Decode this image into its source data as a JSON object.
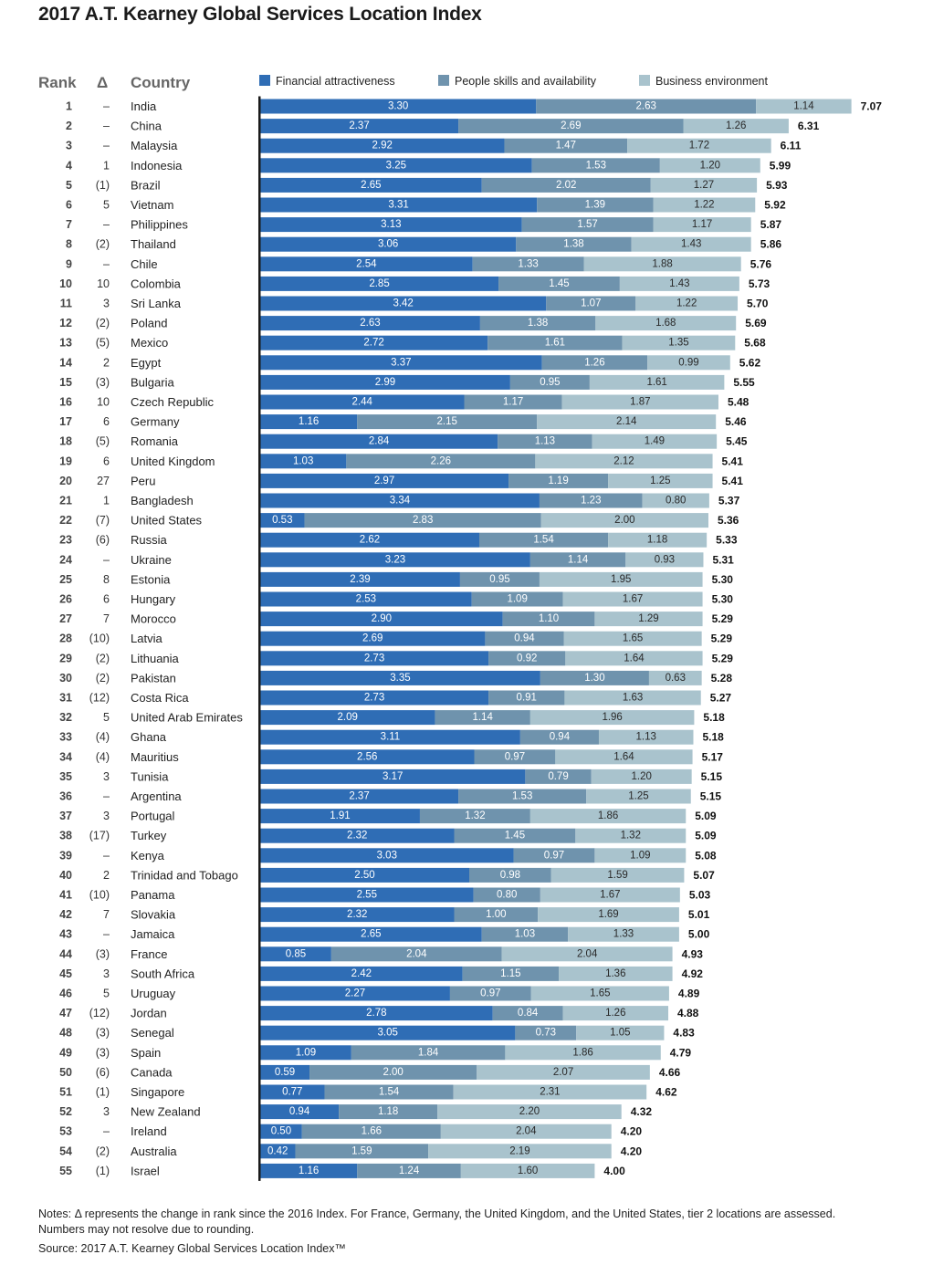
{
  "title": "2017 A.T. Kearney Global Services Location Index",
  "headers": {
    "rank": "Rank",
    "delta": "Δ",
    "country": "Country"
  },
  "colors": {
    "financial": "#2f6db5",
    "people": "#6f93ad",
    "business": "#a9c3cd",
    "axis": "#1a1a1a"
  },
  "chart_data": {
    "type": "bar",
    "orientation": "horizontal",
    "stacked": true,
    "title": "2017 A.T. Kearney Global Services Location Index",
    "legend": [
      "Financial attractiveness",
      "People skills and availability",
      "Business environment"
    ],
    "legend_position": "top",
    "rows": [
      {
        "rank": "1",
        "delta": "–",
        "country": "India",
        "fin": "3.30",
        "ppl": "2.63",
        "bus": "1.14",
        "total": "7.07"
      },
      {
        "rank": "2",
        "delta": "–",
        "country": "China",
        "fin": "2.37",
        "ppl": "2.69",
        "bus": "1.26",
        "total": "6.31"
      },
      {
        "rank": "3",
        "delta": "–",
        "country": "Malaysia",
        "fin": "2.92",
        "ppl": "1.47",
        "bus": "1.72",
        "total": "6.11"
      },
      {
        "rank": "4",
        "delta": "1",
        "country": "Indonesia",
        "fin": "3.25",
        "ppl": "1.53",
        "bus": "1.20",
        "total": "5.99"
      },
      {
        "rank": "5",
        "delta": "(1)",
        "country": "Brazil",
        "fin": "2.65",
        "ppl": "2.02",
        "bus": "1.27",
        "total": "5.93"
      },
      {
        "rank": "6",
        "delta": "5",
        "country": "Vietnam",
        "fin": "3.31",
        "ppl": "1.39",
        "bus": "1.22",
        "total": "5.92"
      },
      {
        "rank": "7",
        "delta": "–",
        "country": "Philippines",
        "fin": "3.13",
        "ppl": "1.57",
        "bus": "1.17",
        "total": "5.87"
      },
      {
        "rank": "8",
        "delta": "(2)",
        "country": "Thailand",
        "fin": "3.06",
        "ppl": "1.38",
        "bus": "1.43",
        "total": "5.86"
      },
      {
        "rank": "9",
        "delta": "–",
        "country": "Chile",
        "fin": "2.54",
        "ppl": "1.33",
        "bus": "1.88",
        "total": "5.76"
      },
      {
        "rank": "10",
        "delta": "10",
        "country": "Colombia",
        "fin": "2.85",
        "ppl": "1.45",
        "bus": "1.43",
        "total": "5.73"
      },
      {
        "rank": "11",
        "delta": "3",
        "country": "Sri Lanka",
        "fin": "3.42",
        "ppl": "1.07",
        "bus": "1.22",
        "total": "5.70"
      },
      {
        "rank": "12",
        "delta": "(2)",
        "country": "Poland",
        "fin": "2.63",
        "ppl": "1.38",
        "bus": "1.68",
        "total": "5.69"
      },
      {
        "rank": "13",
        "delta": "(5)",
        "country": "Mexico",
        "fin": "2.72",
        "ppl": "1.61",
        "bus": "1.35",
        "total": "5.68"
      },
      {
        "rank": "14",
        "delta": "2",
        "country": "Egypt",
        "fin": "3.37",
        "ppl": "1.26",
        "bus": "0.99",
        "total": "5.62"
      },
      {
        "rank": "15",
        "delta": "(3)",
        "country": "Bulgaria",
        "fin": "2.99",
        "ppl": "0.95",
        "bus": "1.61",
        "total": "5.55"
      },
      {
        "rank": "16",
        "delta": "10",
        "country": "Czech Republic",
        "fin": "2.44",
        "ppl": "1.17",
        "bus": "1.87",
        "total": "5.48"
      },
      {
        "rank": "17",
        "delta": "6",
        "country": "Germany",
        "fin": "1.16",
        "ppl": "2.15",
        "bus": "2.14",
        "total": "5.46"
      },
      {
        "rank": "18",
        "delta": "(5)",
        "country": "Romania",
        "fin": "2.84",
        "ppl": "1.13",
        "bus": "1.49",
        "total": "5.45"
      },
      {
        "rank": "19",
        "delta": "6",
        "country": "United Kingdom",
        "fin": "1.03",
        "ppl": "2.26",
        "bus": "2.12",
        "total": "5.41"
      },
      {
        "rank": "20",
        "delta": "27",
        "country": "Peru",
        "fin": "2.97",
        "ppl": "1.19",
        "bus": "1.25",
        "total": "5.41"
      },
      {
        "rank": "21",
        "delta": "1",
        "country": "Bangladesh",
        "fin": "3.34",
        "ppl": "1.23",
        "bus": "0.80",
        "total": "5.37"
      },
      {
        "rank": "22",
        "delta": "(7)",
        "country": "United States",
        "fin": "0.53",
        "ppl": "2.83",
        "bus": "2.00",
        "total": "5.36"
      },
      {
        "rank": "23",
        "delta": "(6)",
        "country": "Russia",
        "fin": "2.62",
        "ppl": "1.54",
        "bus": "1.18",
        "total": "5.33"
      },
      {
        "rank": "24",
        "delta": "–",
        "country": "Ukraine",
        "fin": "3.23",
        "ppl": "1.14",
        "bus": "0.93",
        "total": "5.31"
      },
      {
        "rank": "25",
        "delta": "8",
        "country": "Estonia",
        "fin": "2.39",
        "ppl": "0.95",
        "bus": "1.95",
        "total": "5.30"
      },
      {
        "rank": "26",
        "delta": "6",
        "country": "Hungary",
        "fin": "2.53",
        "ppl": "1.09",
        "bus": "1.67",
        "total": "5.30"
      },
      {
        "rank": "27",
        "delta": "7",
        "country": "Morocco",
        "fin": "2.90",
        "ppl": "1.10",
        "bus": "1.29",
        "total": "5.29"
      },
      {
        "rank": "28",
        "delta": "(10)",
        "country": "Latvia",
        "fin": "2.69",
        "ppl": "0.94",
        "bus": "1.65",
        "total": "5.29"
      },
      {
        "rank": "29",
        "delta": "(2)",
        "country": "Lithuania",
        "fin": "2.73",
        "ppl": "0.92",
        "bus": "1.64",
        "total": "5.29"
      },
      {
        "rank": "30",
        "delta": "(2)",
        "country": "Pakistan",
        "fin": "3.35",
        "ppl": "1.30",
        "bus": "0.63",
        "total": "5.28"
      },
      {
        "rank": "31",
        "delta": "(12)",
        "country": "Costa Rica",
        "fin": "2.73",
        "ppl": "0.91",
        "bus": "1.63",
        "total": "5.27"
      },
      {
        "rank": "32",
        "delta": "5",
        "country": "United Arab Emirates",
        "fin": "2.09",
        "ppl": "1.14",
        "bus": "1.96",
        "total": "5.18"
      },
      {
        "rank": "33",
        "delta": "(4)",
        "country": "Ghana",
        "fin": "3.11",
        "ppl": "0.94",
        "bus": "1.13",
        "total": "5.18"
      },
      {
        "rank": "34",
        "delta": "(4)",
        "country": "Mauritius",
        "fin": "2.56",
        "ppl": "0.97",
        "bus": "1.64",
        "total": "5.17"
      },
      {
        "rank": "35",
        "delta": "3",
        "country": "Tunisia",
        "fin": "3.17",
        "ppl": "0.79",
        "bus": "1.20",
        "total": "5.15"
      },
      {
        "rank": "36",
        "delta": "–",
        "country": "Argentina",
        "fin": "2.37",
        "ppl": "1.53",
        "bus": "1.25",
        "total": "5.15"
      },
      {
        "rank": "37",
        "delta": "3",
        "country": "Portugal",
        "fin": "1.91",
        "ppl": "1.32",
        "bus": "1.86",
        "total": "5.09"
      },
      {
        "rank": "38",
        "delta": "(17)",
        "country": "Turkey",
        "fin": "2.32",
        "ppl": "1.45",
        "bus": "1.32",
        "total": "5.09"
      },
      {
        "rank": "39",
        "delta": "–",
        "country": "Kenya",
        "fin": "3.03",
        "ppl": "0.97",
        "bus": "1.09",
        "total": "5.08"
      },
      {
        "rank": "40",
        "delta": "2",
        "country": "Trinidad and Tobago",
        "fin": "2.50",
        "ppl": "0.98",
        "bus": "1.59",
        "total": "5.07"
      },
      {
        "rank": "41",
        "delta": "(10)",
        "country": "Panama",
        "fin": "2.55",
        "ppl": "0.80",
        "bus": "1.67",
        "total": "5.03"
      },
      {
        "rank": "42",
        "delta": "7",
        "country": "Slovakia",
        "fin": "2.32",
        "ppl": "1.00",
        "bus": "1.69",
        "total": "5.01"
      },
      {
        "rank": "43",
        "delta": "–",
        "country": "Jamaica",
        "fin": "2.65",
        "ppl": "1.03",
        "bus": "1.33",
        "total": "5.00"
      },
      {
        "rank": "44",
        "delta": "(3)",
        "country": "France",
        "fin": "0.85",
        "ppl": "2.04",
        "bus": "2.04",
        "total": "4.93"
      },
      {
        "rank": "45",
        "delta": "3",
        "country": "South Africa",
        "fin": "2.42",
        "ppl": "1.15",
        "bus": "1.36",
        "total": "4.92"
      },
      {
        "rank": "46",
        "delta": "5",
        "country": "Uruguay",
        "fin": "2.27",
        "ppl": "0.97",
        "bus": "1.65",
        "total": "4.89"
      },
      {
        "rank": "47",
        "delta": "(12)",
        "country": "Jordan",
        "fin": "2.78",
        "ppl": "0.84",
        "bus": "1.26",
        "total": "4.88"
      },
      {
        "rank": "48",
        "delta": "(3)",
        "country": "Senegal",
        "fin": "3.05",
        "ppl": "0.73",
        "bus": "1.05",
        "total": "4.83"
      },
      {
        "rank": "49",
        "delta": "(3)",
        "country": "Spain",
        "fin": "1.09",
        "ppl": "1.84",
        "bus": "1.86",
        "total": "4.79"
      },
      {
        "rank": "50",
        "delta": "(6)",
        "country": "Canada",
        "fin": "0.59",
        "ppl": "2.00",
        "bus": "2.07",
        "total": "4.66"
      },
      {
        "rank": "51",
        "delta": "(1)",
        "country": "Singapore",
        "fin": "0.77",
        "ppl": "1.54",
        "bus": "2.31",
        "total": "4.62"
      },
      {
        "rank": "52",
        "delta": "3",
        "country": "New Zealand",
        "fin": "0.94",
        "ppl": "1.18",
        "bus": "2.20",
        "total": "4.32"
      },
      {
        "rank": "53",
        "delta": "–",
        "country": "Ireland",
        "fin": "0.50",
        "ppl": "1.66",
        "bus": "2.04",
        "total": "4.20"
      },
      {
        "rank": "54",
        "delta": "(2)",
        "country": "Australia",
        "fin": "0.42",
        "ppl": "1.59",
        "bus": "2.19",
        "total": "4.20"
      },
      {
        "rank": "55",
        "delta": "(1)",
        "country": "Israel",
        "fin": "1.16",
        "ppl": "1.24",
        "bus": "1.60",
        "total": "4.00"
      }
    ]
  },
  "notes": {
    "line1": "Notes: Δ represents the change in rank since the 2016 Index. For France, Germany, the United Kingdom, and the United States, tier 2 locations are assessed.",
    "line2": "Numbers may not resolve due to rounding.",
    "source": "Source: 2017 A.T. Kearney Global Services Location Index™"
  }
}
